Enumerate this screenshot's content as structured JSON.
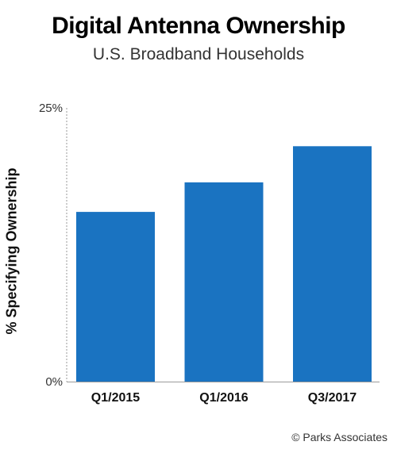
{
  "chart_data": {
    "type": "bar",
    "title": "Digital Antenna Ownership",
    "subtitle": "U.S. Broadband Households",
    "xlabel": "",
    "ylabel": "% Specifying Ownership",
    "categories": [
      "Q1/2015",
      "Q1/2016",
      "Q3/2017"
    ],
    "values": [
      15.5,
      18.2,
      21.5
    ],
    "unit": "%",
    "ylim": [
      0,
      25
    ],
    "y_tick_labels": [
      "0%",
      "25%"
    ],
    "grid": false,
    "legend": "none",
    "bar_color": "#1a73c1",
    "credit": "© Parks Associates"
  }
}
